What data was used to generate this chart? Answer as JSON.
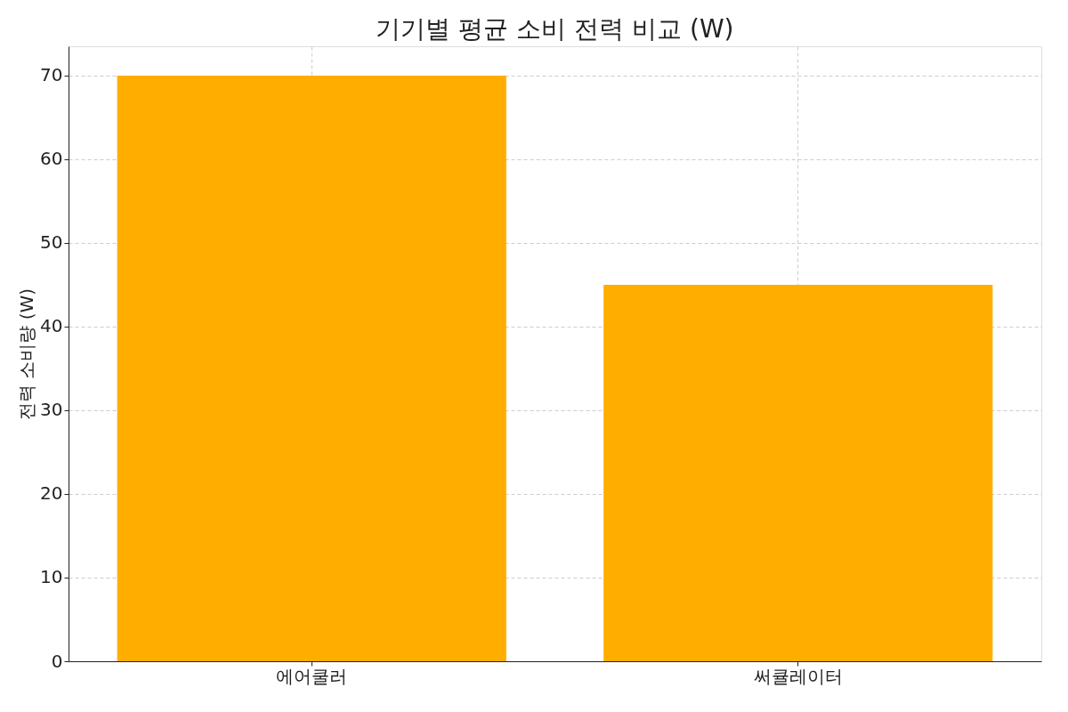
{
  "chart_data": {
    "type": "bar",
    "title": "기기별 평균 소비 전력 비교 (W)",
    "ylabel": "전력 소비량 (W)",
    "categories": [
      "에어쿨러",
      "써큘레이터"
    ],
    "values": [
      70,
      45
    ],
    "color": "#ffae00",
    "ylim": [
      0,
      73.5
    ],
    "yticks": [
      0,
      10,
      20,
      30,
      40,
      50,
      60,
      70
    ],
    "grid": true
  }
}
